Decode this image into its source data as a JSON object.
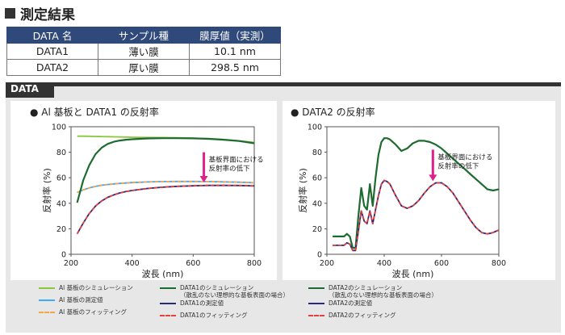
{
  "title": "測定結果",
  "table": {
    "headers": [
      "DATA 名",
      "サンプル種",
      "膜厚値（実測）"
    ],
    "rows": [
      [
        "DATA1",
        "薄い膜",
        "10.1 nm"
      ],
      [
        "DATA2",
        "厚い膜",
        "298.5 nm"
      ]
    ]
  },
  "panel": {
    "tag": "DATA"
  },
  "colors": {
    "al_sim": "#8cc63f",
    "al_meas": "#3fa9f5",
    "al_fit": "#f7a44a",
    "d_sim": "#1e6b2f",
    "d_meas": "#2a2a7a",
    "d_fit": "#e8403c"
  },
  "chart_data": [
    {
      "type": "line",
      "title": "● Al 基板と DATA1 の反射率",
      "xlabel": "波長 (nm)",
      "ylabel": "反射率 (%)",
      "xlim": [
        200,
        800
      ],
      "ylim": [
        0,
        100
      ],
      "xticks": [
        200,
        400,
        600,
        800
      ],
      "yticks": [
        0,
        20,
        40,
        60,
        80,
        100
      ],
      "annotation": [
        "基板界面における",
        "反射率の低下"
      ],
      "x": [
        220,
        240,
        260,
        280,
        300,
        320,
        340,
        360,
        380,
        400,
        450,
        500,
        550,
        600,
        650,
        700,
        750,
        800
      ],
      "series": [
        {
          "name": "Al 基板のシミュレーション",
          "key": "al_sim",
          "values": [
            92.6,
            92.6,
            92.5,
            92.4,
            92.3,
            92.2,
            92.1,
            92.0,
            91.9,
            91.8,
            91.6,
            91.5,
            91.3,
            91.1,
            90.7,
            90.0,
            89.0,
            87.7
          ]
        },
        {
          "name": "Al 基板の測定値",
          "key": "al_meas",
          "values": [
            48.5,
            50.5,
            52.0,
            53.2,
            54.1,
            54.7,
            55.2,
            55.6,
            55.9,
            56.2,
            56.7,
            57.0,
            57.1,
            57.1,
            57.0,
            56.8,
            56.5,
            56.1
          ]
        },
        {
          "name": "Al 基板のフィッティング",
          "key": "al_fit",
          "values": [
            48.5,
            50.5,
            52.0,
            53.2,
            54.1,
            54.7,
            55.2,
            55.6,
            55.9,
            56.2,
            56.7,
            57.0,
            57.1,
            57.1,
            57.0,
            56.8,
            56.5,
            56.1
          ]
        },
        {
          "name": "DATA1 のシミュレーション (散乱のない理想的な基板表面の場合)",
          "key": "d_sim",
          "values": [
            40.5,
            58.0,
            70.0,
            78.5,
            83.5,
            86.5,
            88.2,
            89.2,
            89.8,
            90.2,
            90.8,
            91.0,
            91.0,
            90.9,
            90.5,
            89.8,
            88.8,
            87.0
          ]
        },
        {
          "name": "DATA1 の測定値",
          "key": "d_meas",
          "values": [
            16.0,
            24.5,
            32.0,
            37.8,
            41.8,
            44.6,
            46.6,
            48.1,
            49.2,
            50.0,
            51.6,
            52.6,
            53.3,
            53.7,
            54.0,
            54.0,
            53.9,
            53.6
          ]
        },
        {
          "name": "DATA1 のフィッティング",
          "key": "d_fit",
          "values": [
            16.0,
            24.5,
            32.0,
            37.8,
            41.8,
            44.6,
            46.6,
            48.1,
            49.2,
            50.0,
            51.6,
            52.6,
            53.3,
            53.7,
            54.0,
            54.0,
            53.9,
            53.6
          ]
        }
      ]
    },
    {
      "type": "line",
      "title": "● DATA2 の反射率",
      "xlabel": "波長 (nm)",
      "ylabel": "反射率 (%)",
      "xlim": [
        200,
        800
      ],
      "ylim": [
        0,
        100
      ],
      "xticks": [
        200,
        400,
        600,
        800
      ],
      "yticks": [
        0,
        20,
        40,
        60,
        80,
        100
      ],
      "annotation": [
        "基板界面における",
        "反射率の低下"
      ],
      "x": [
        220,
        240,
        260,
        270,
        280,
        290,
        300,
        310,
        320,
        330,
        340,
        350,
        360,
        370,
        380,
        390,
        400,
        410,
        420,
        440,
        460,
        480,
        500,
        520,
        540,
        560,
        580,
        600,
        620,
        640,
        660,
        680,
        700,
        720,
        740,
        760,
        780,
        800
      ],
      "series": [
        {
          "name": "DATA2 のシミュレーション (散乱のない理想的な基板表面の場合)",
          "key": "d_sim",
          "values": [
            14,
            14,
            14,
            16,
            14,
            5,
            5,
            30,
            52,
            38,
            35,
            55,
            38,
            60,
            78,
            88,
            91,
            91,
            90,
            86,
            81,
            83,
            87,
            89,
            89,
            88,
            86,
            83,
            79,
            75,
            71,
            67,
            63,
            59,
            55,
            51,
            50,
            51
          ]
        },
        {
          "name": "DATA2 の測定値",
          "key": "d_meas",
          "values": [
            7,
            7,
            7,
            9,
            8,
            3,
            3,
            18,
            34,
            26,
            24,
            34,
            24,
            35,
            46,
            55,
            58,
            57,
            55,
            46,
            38,
            36,
            38,
            42,
            48,
            53,
            56,
            56,
            53,
            48,
            41,
            34,
            27,
            21,
            17,
            16,
            17,
            19
          ]
        },
        {
          "name": "DATA2 のフィッティング",
          "key": "d_fit",
          "values": [
            7,
            7,
            7,
            9,
            8,
            3,
            3,
            18,
            34,
            26,
            24,
            34,
            24,
            35,
            46,
            55,
            58,
            57,
            55,
            46,
            38,
            36,
            38,
            42,
            48,
            53,
            56,
            56,
            53,
            48,
            41,
            34,
            27,
            21,
            17,
            16,
            17,
            19
          ]
        }
      ]
    }
  ],
  "legend": {
    "left": [
      {
        "key": "al_sim",
        "style": "solid",
        "label": "Al 基板のシミュレーション"
      },
      {
        "key": "al_meas",
        "style": "solid",
        "label": "Al 基板の測定値"
      },
      {
        "key": "al_fit",
        "style": "dashed",
        "label": "Al 基板のフィッティング"
      }
    ],
    "middle": [
      {
        "key": "d_sim",
        "style": "solid",
        "label": "DATA1のシミュレーション",
        "sub": "（散乱のない理想的な基板表面の場合）"
      },
      {
        "key": "d_meas",
        "style": "solid",
        "label": "DATA1の測定値"
      },
      {
        "key": "d_fit",
        "style": "dashed",
        "label": "DATA1のフィッティング"
      }
    ],
    "right": [
      {
        "key": "d_sim",
        "style": "solid",
        "label": "DATA2のシミュレーション",
        "sub": "（散乱のない理想的な基板表面の場合）"
      },
      {
        "key": "d_meas",
        "style": "solid",
        "label": "DATA2の測定値"
      },
      {
        "key": "d_fit",
        "style": "dashed",
        "label": "DATA2のフィッティング"
      }
    ]
  }
}
